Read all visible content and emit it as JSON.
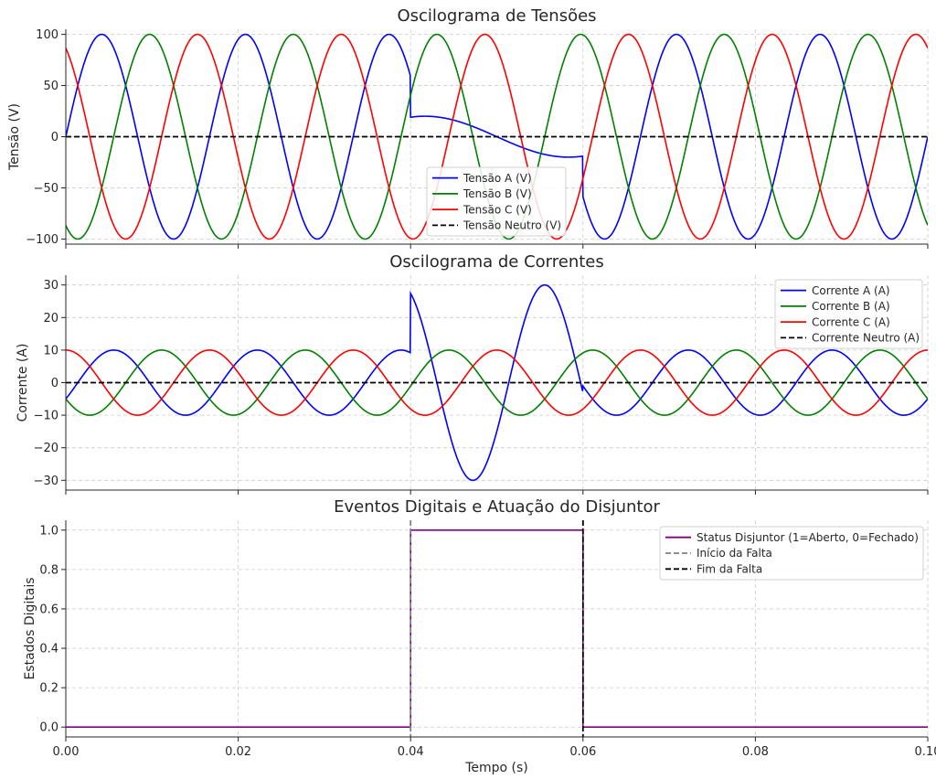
{
  "chart_data": [
    {
      "type": "line",
      "title": "Oscilograma de Tensões",
      "xlabel": "",
      "ylabel": "Tensão (V)",
      "xlim": [
        0.0,
        0.1
      ],
      "ylim": [
        -105,
        105
      ],
      "yticks": [
        100,
        50,
        0,
        -50,
        -100
      ],
      "ytick_labels": [
        "100",
        "50",
        "0",
        "−50",
        "−100"
      ],
      "grid": true,
      "legend_position": "lower-center",
      "series": [
        {
          "name": "Tensão A (V)",
          "color": "#0000ff",
          "style": "solid",
          "kind": "phaseA",
          "amplitude": 100,
          "phase_deg": 0,
          "fault_amplitude": 20,
          "frequency_hz": 60,
          "fault_frequency_hz": 30
        },
        {
          "name": "Tensão B (V)",
          "color": "#008000",
          "style": "solid",
          "kind": "sine",
          "amplitude": 100,
          "phase_deg": -120,
          "frequency_hz": 60
        },
        {
          "name": "Tensão C (V)",
          "color": "#ff0000",
          "style": "solid",
          "kind": "sine",
          "amplitude": 100,
          "phase_deg": 120,
          "frequency_hz": 60
        },
        {
          "name": "Tensão Neutro (V)",
          "color": "#000000",
          "style": "dashed",
          "kind": "constant",
          "value": 0
        }
      ]
    },
    {
      "type": "line",
      "title": "Oscilograma de Correntes",
      "xlabel": "",
      "ylabel": "Corrente (A)",
      "xlim": [
        0.0,
        0.1
      ],
      "ylim": [
        -33,
        33
      ],
      "yticks": [
        30,
        20,
        10,
        0,
        -10,
        -20,
        -30
      ],
      "ytick_labels": [
        "30",
        "20",
        "10",
        "0",
        "−10",
        "−20",
        "−30"
      ],
      "grid": true,
      "legend_position": "top-right",
      "series": [
        {
          "name": "Corrente A (A)",
          "color": "#0000ff",
          "style": "solid",
          "kind": "phaseA",
          "amplitude": 10,
          "phase_deg": -30,
          "fault_amplitude": 30,
          "frequency_hz": 60,
          "fault_frequency_hz": 60
        },
        {
          "name": "Corrente B (A)",
          "color": "#008000",
          "style": "solid",
          "kind": "sine",
          "amplitude": 10,
          "phase_deg": -150,
          "frequency_hz": 60
        },
        {
          "name": "Corrente C (A)",
          "color": "#ff0000",
          "style": "solid",
          "kind": "sine",
          "amplitude": 10,
          "phase_deg": 90,
          "frequency_hz": 60
        },
        {
          "name": "Corrente Neutro (A)",
          "color": "#000000",
          "style": "dashed",
          "kind": "constant",
          "value": 0
        }
      ]
    },
    {
      "type": "line",
      "title": "Eventos Digitais e Atuação do Disjuntor",
      "xlabel": "Tempo (s)",
      "ylabel": "Estados Digitais",
      "xlim": [
        0.0,
        0.1
      ],
      "ylim": [
        -0.05,
        1.05
      ],
      "yticks": [
        1.0,
        0.8,
        0.6,
        0.4,
        0.2,
        0.0
      ],
      "ytick_labels": [
        "1.0",
        "0.8",
        "0.6",
        "0.4",
        "0.2",
        "0.0"
      ],
      "xticks": [
        0.0,
        0.02,
        0.04,
        0.06,
        0.08,
        0.1
      ],
      "xtick_labels": [
        "0.00",
        "0.02",
        "0.04",
        "0.06",
        "0.08",
        "0.10"
      ],
      "grid": true,
      "legend_position": "top-right",
      "series": [
        {
          "name": "Status Disjuntor (1=Aberto, 0=Fechado)",
          "color": "#800080",
          "style": "solid",
          "kind": "step",
          "x": [
            0.0,
            0.04,
            0.04,
            0.06,
            0.06,
            0.1
          ],
          "y": [
            0,
            0,
            1,
            1,
            0,
            0
          ]
        },
        {
          "name": "Início da Falta",
          "color": "#808080",
          "style": "dashed",
          "kind": "vline",
          "x": 0.04
        },
        {
          "name": "Fim da Falta",
          "color": "#000000",
          "style": "dashed",
          "kind": "vline",
          "x": 0.06
        }
      ]
    }
  ],
  "fault_start_s": 0.04,
  "fault_end_s": 0.06
}
